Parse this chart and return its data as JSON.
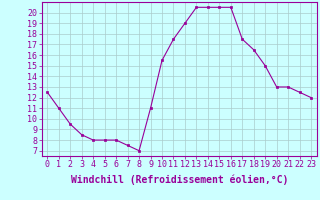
{
  "x": [
    0,
    1,
    2,
    3,
    4,
    5,
    6,
    7,
    8,
    9,
    10,
    11,
    12,
    13,
    14,
    15,
    16,
    17,
    18,
    19,
    20,
    21,
    22,
    23
  ],
  "y": [
    12.5,
    11.0,
    9.5,
    8.5,
    8.0,
    8.0,
    8.0,
    7.5,
    7.0,
    11.0,
    15.5,
    17.5,
    19.0,
    20.5,
    20.5,
    20.5,
    20.5,
    17.5,
    16.5,
    15.0,
    13.0,
    13.0,
    12.5,
    12.0
  ],
  "line_color": "#990099",
  "marker": "s",
  "marker_size": 2,
  "bg_color": "#ccffff",
  "grid_color": "#aacccc",
  "xlabel": "Windchill (Refroidissement éolien,°C)",
  "xlabel_color": "#990099",
  "xlabel_fontsize": 7,
  "ylabel_ticks": [
    7,
    8,
    9,
    10,
    11,
    12,
    13,
    14,
    15,
    16,
    17,
    18,
    19,
    20
  ],
  "ylim": [
    6.5,
    21.0
  ],
  "xlim": [
    -0.5,
    23.5
  ],
  "tick_color": "#990099",
  "tick_fontsize": 6,
  "axis_color": "#990099"
}
